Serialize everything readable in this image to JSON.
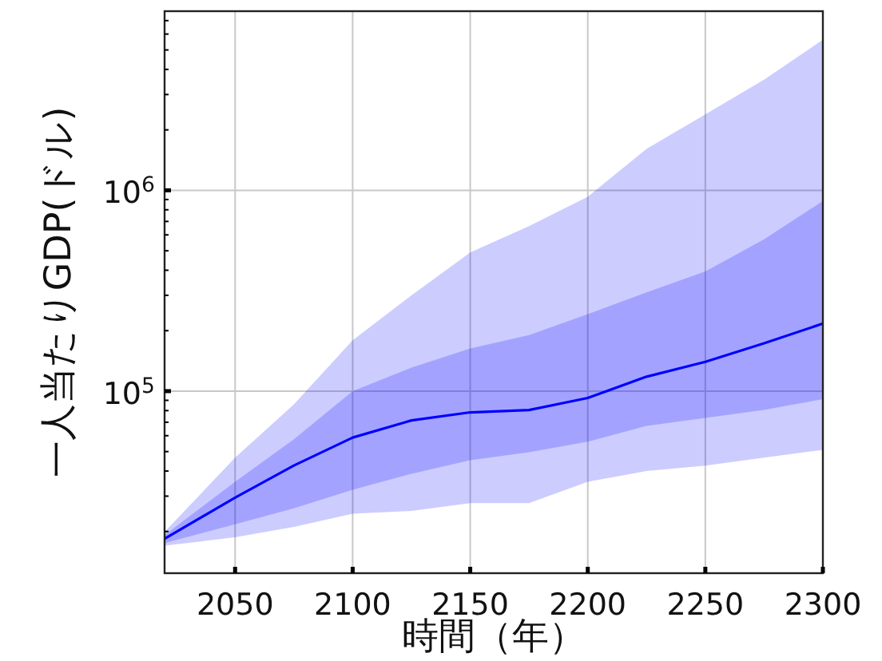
{
  "chart_data": {
    "type": "line",
    "xlabel": "時間（年）",
    "ylabel": "一人当たりGDP(ドル)",
    "x": [
      2020,
      2050,
      2075,
      2100,
      2125,
      2150,
      2175,
      2200,
      2225,
      2250,
      2275,
      2300
    ],
    "series": [
      {
        "color": "#0000ff",
        "values": [
          18400,
          29500,
          42600,
          58700,
          71500,
          78400,
          80500,
          92500,
          118000,
          140000,
          173000,
          217000
        ],
        "lower": [
          17500,
          21700,
          26100,
          32300,
          38800,
          45300,
          49600,
          56000,
          67200,
          73600,
          80700,
          91200
        ],
        "upper": [
          19200,
          35400,
          57600,
          100000,
          131000,
          163000,
          190000,
          242000,
          310000,
          395000,
          570000,
          885000
        ]
      },
      {
        "color": "#0000ff",
        "values": [
          null,
          null,
          null,
          null,
          null,
          null,
          null,
          null,
          null,
          null,
          null,
          null
        ],
        "lower": [
          17000,
          18700,
          21100,
          24500,
          25300,
          27700,
          27700,
          35400,
          40000,
          42600,
          46600,
          51000
        ],
        "upper": [
          19900,
          46600,
          85900,
          179000,
          300000,
          490000,
          664000,
          929000,
          1610000,
          2390000,
          3560000,
          5620000
        ]
      }
    ],
    "log": "y",
    "grid": true,
    "marker": "none",
    "line_style": "solid",
    "xlim": [
      2020,
      2300
    ],
    "xticks": [
      2050,
      2100,
      2150,
      2200,
      2250,
      2300
    ],
    "ylim": [
      12400,
      7800000
    ],
    "yticks": [
      {
        "value": 20000,
        "label": null
      },
      {
        "value": 30000,
        "label": null
      },
      {
        "value": 40000,
        "label": null
      },
      {
        "value": 50000,
        "label": null
      },
      {
        "value": 60000,
        "label": null
      },
      {
        "value": 70000,
        "label": null
      },
      {
        "value": 80000,
        "label": null
      },
      {
        "value": 90000,
        "label": null
      },
      {
        "value": 100000,
        "label": "10$^{5}$"
      },
      {
        "value": 200000,
        "label": null
      },
      {
        "value": 300000,
        "label": null
      },
      {
        "value": 400000,
        "label": null
      },
      {
        "value": 500000,
        "label": null
      },
      {
        "value": 600000,
        "label": null
      },
      {
        "value": 700000,
        "label": null
      },
      {
        "value": 800000,
        "label": null
      },
      {
        "value": 900000,
        "label": null
      },
      {
        "value": 1000000,
        "label": "10$^{6}$"
      },
      {
        "value": 2000000,
        "label": null
      },
      {
        "value": 3000000,
        "label": null
      },
      {
        "value": 4000000,
        "label": null
      },
      {
        "value": 5000000,
        "label": null
      },
      {
        "value": 6000000,
        "label": null
      },
      {
        "value": 7000000,
        "label": null
      }
    ]
  }
}
